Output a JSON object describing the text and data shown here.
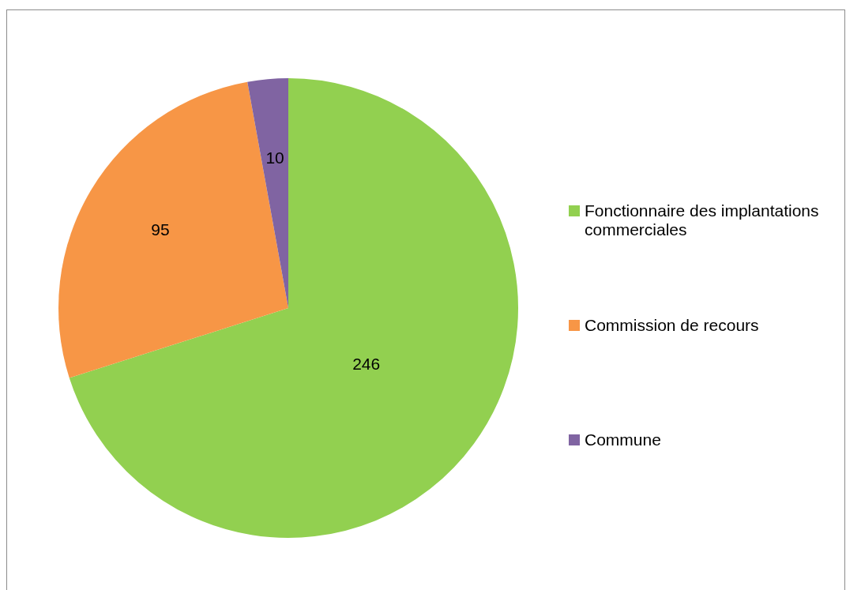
{
  "chart_data": {
    "type": "pie",
    "categories": [
      "Fonctionnaire des implantations commerciales",
      "Commission de recours",
      "Commune"
    ],
    "values": [
      246,
      95,
      10
    ],
    "colors": [
      "#92d050",
      "#f79646",
      "#8064a2"
    ],
    "data_labels": true,
    "legend": "right"
  }
}
